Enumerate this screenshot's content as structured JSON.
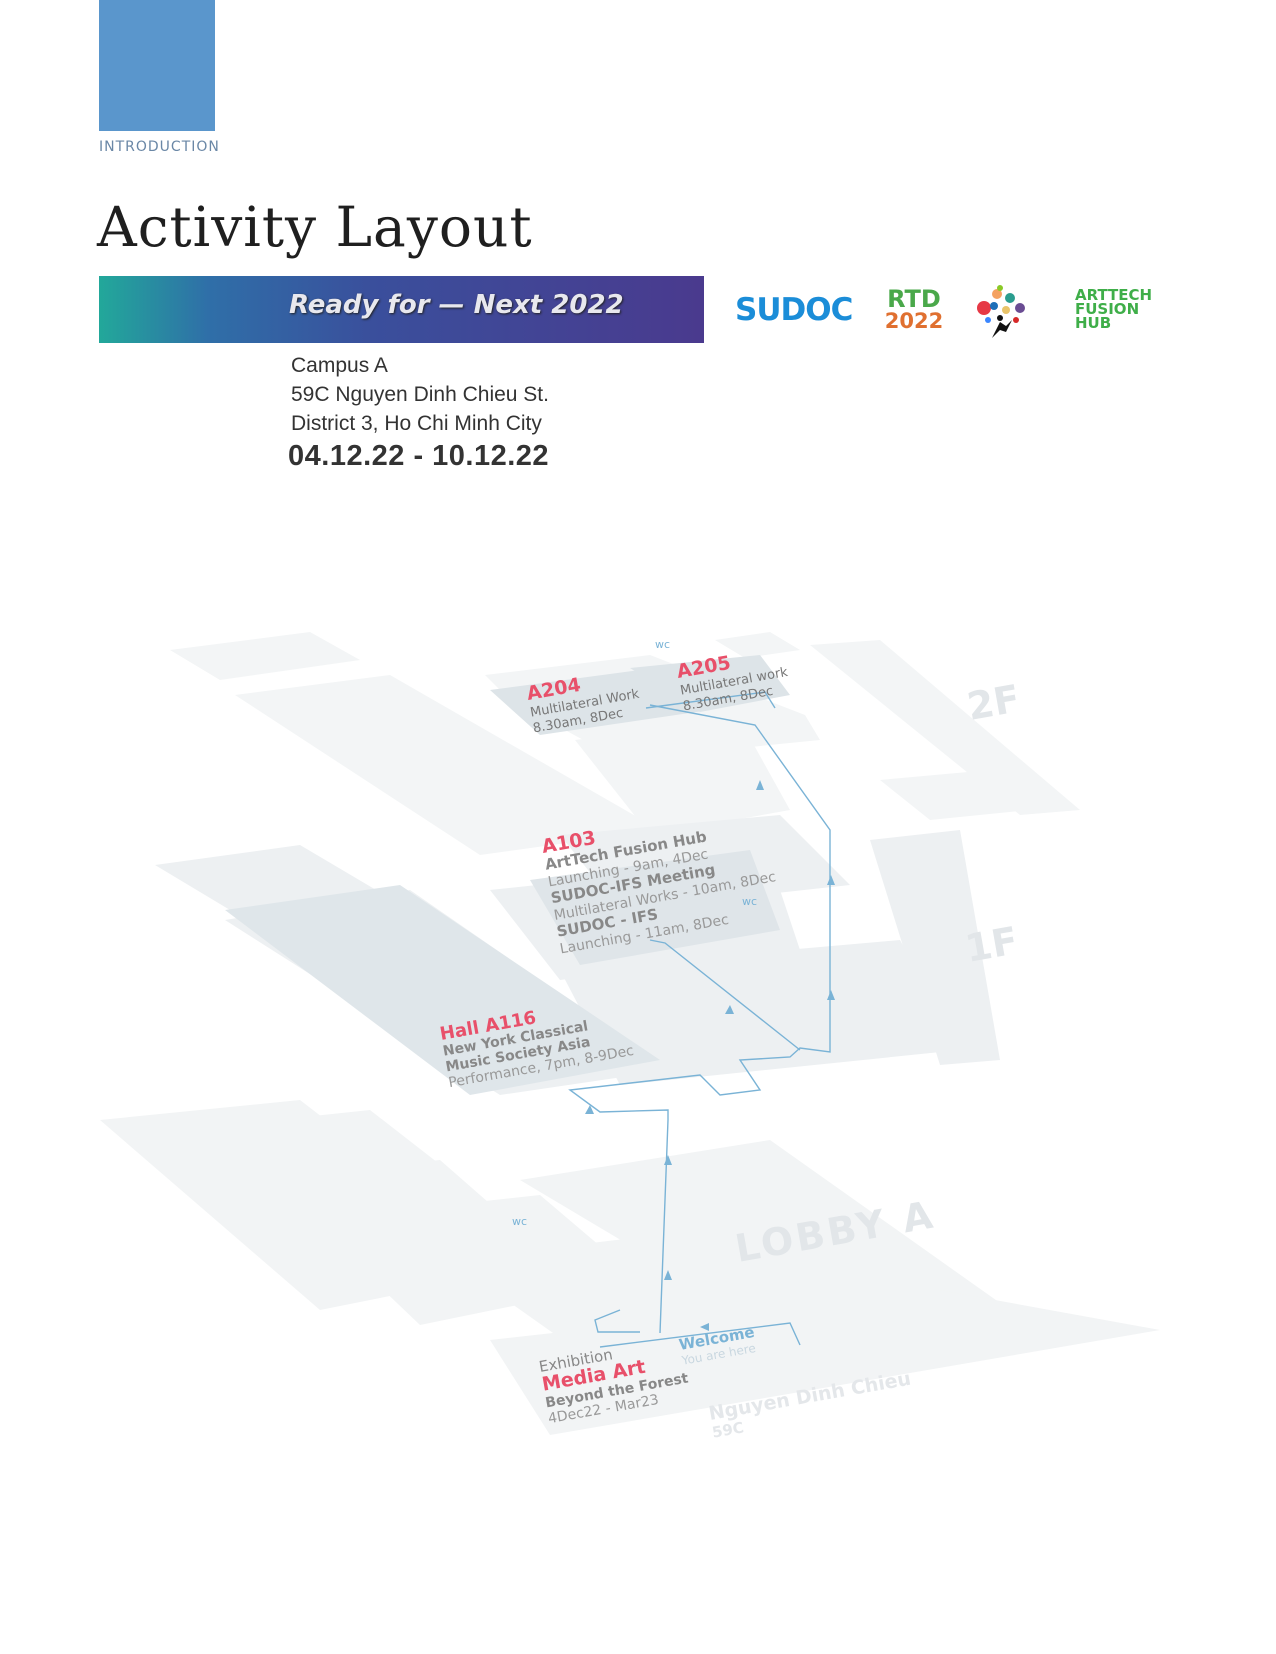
{
  "header": {
    "section_label": "INTRODUCTION",
    "title": "Activity Layout"
  },
  "banner": {
    "text": "Ready for — Next 2022"
  },
  "logos": {
    "sudoc": "SUDOC",
    "rtd": [
      "RTD",
      "2022"
    ],
    "arttech": [
      "ARTTECH",
      "FUSION",
      "HUB"
    ]
  },
  "venue": {
    "line1": "Campus A",
    "line2": "59C Nguyen Dinh Chieu St.",
    "line3": "District 3, Ho Chi Minh City",
    "dates": "04.12.22 - 10.12.22"
  },
  "map": {
    "floors": {
      "f2": "2F",
      "f1": "1F",
      "lobby": "LOBBY A"
    },
    "wc": "wc",
    "street": {
      "name": "Nguyen Dinh Chieu",
      "number": "59C"
    },
    "welcome": {
      "title": "Welcome",
      "sub": "You are here"
    },
    "rooms": {
      "a204": {
        "name": "A204",
        "line1": "Multilateral Work",
        "line2": "8.30am, 8Dec"
      },
      "a205": {
        "name": "A205",
        "line1": "Multilateral work",
        "line2": "8.30am, 8Dec"
      },
      "a103": {
        "name": "A103",
        "l1": "ArtTech Fusion Hub",
        "l2": "Launching - 9am, 4Dec",
        "l3": "SUDOC-IFS Meeting",
        "l4": "Multilateral Works - 10am, 8Dec",
        "l5": "SUDOC - IFS",
        "l6": "Launching - 11am, 8Dec"
      },
      "a116": {
        "name": "Hall A116",
        "l1": "New York Classical",
        "l2": "Music Society Asia",
        "l3": "Performance, 7pm, 8-9Dec"
      },
      "exhibition": {
        "l0": "Exhibition",
        "name": "Media Art",
        "l1": "Beyond the Forest",
        "l2": "4Dec22 - Mar23"
      }
    },
    "colors": {
      "accent": "#e8506a",
      "path": "#7ab3d6",
      "floor": "#eef1f3"
    }
  }
}
